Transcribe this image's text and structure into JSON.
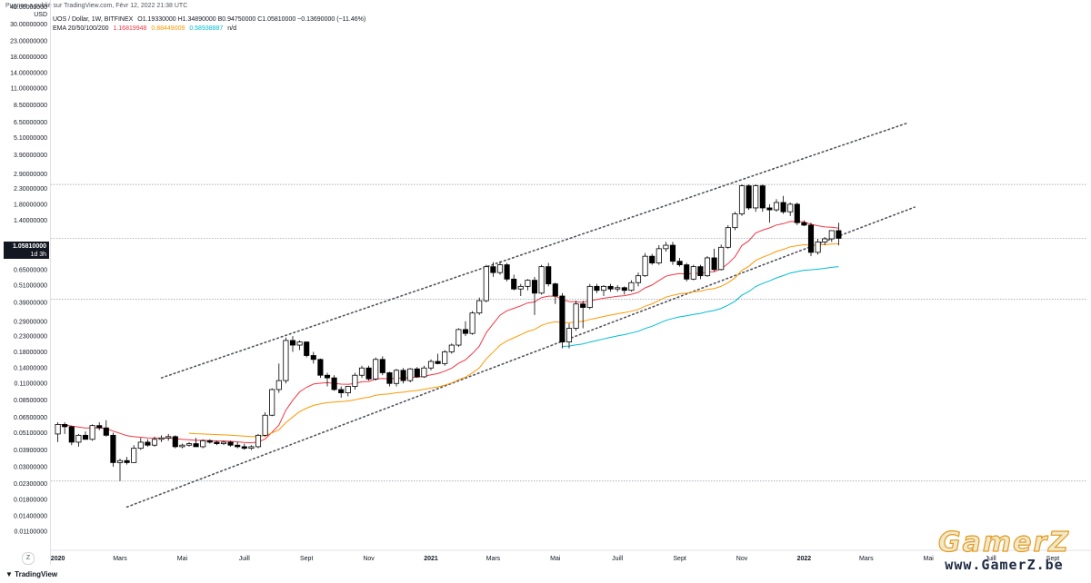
{
  "header": {
    "published_text": "Pugnae a publié sur TradingView.com, Févr 12, 2022 21:38 UTC"
  },
  "legend": {
    "symbol": "UOS / Dollar, 1W, BITFINEX",
    "ohlc": "O1.19330000  H1.34890000  B0.94750000  C1.05810000  −0.13690000 (−11.46%)",
    "ema_label": "EMA 20/50/100/200",
    "ema20": "1.16819948",
    "ema50": "0.88449009",
    "ema100": "0.58938887",
    "ema200": "n/d",
    "colors": {
      "ema20": "#f23645",
      "ema50": "#ff9800",
      "ema100": "#00bcd4"
    }
  },
  "price_axis": {
    "currency_top": "40.00000000",
    "currency": "USD",
    "last_price": "1.05810000",
    "last_price_sub": "1d 3h"
  },
  "watermark": {
    "logo_text": "GamerZ",
    "url_text": "www.GamerZ.be"
  },
  "footer": {
    "brand": "TradingView",
    "zoom_label": "Z"
  },
  "chart_data": {
    "type": "candlestick",
    "title": "",
    "ylabel": "",
    "y_scale": "log",
    "ylim": [
      0.0085,
      40
    ],
    "y_ticks": [
      {
        "label": "30.00000000",
        "v": 30
      },
      {
        "label": "23.00000000",
        "v": 23
      },
      {
        "label": "18.00000000",
        "v": 18
      },
      {
        "label": "14.00000000",
        "v": 14
      },
      {
        "label": "11.00000000",
        "v": 11
      },
      {
        "label": "8.50000000",
        "v": 8.5
      },
      {
        "label": "6.50000000",
        "v": 6.5
      },
      {
        "label": "5.10000000",
        "v": 5.1
      },
      {
        "label": "3.90000000",
        "v": 3.9
      },
      {
        "label": "2.90000000",
        "v": 2.9
      },
      {
        "label": "2.30000000",
        "v": 2.3
      },
      {
        "label": "1.80000000",
        "v": 1.8
      },
      {
        "label": "1.40000000",
        "v": 1.4
      },
      {
        "label": "0.85000000",
        "v": 0.85
      },
      {
        "label": "0.65000000",
        "v": 0.65
      },
      {
        "label": "0.51000000",
        "v": 0.51
      },
      {
        "label": "0.39000000",
        "v": 0.39
      },
      {
        "label": "0.29000000",
        "v": 0.29
      },
      {
        "label": "0.23000000",
        "v": 0.23
      },
      {
        "label": "0.18000000",
        "v": 0.18
      },
      {
        "label": "0.14000000",
        "v": 0.14
      },
      {
        "label": "0.11000000",
        "v": 0.11
      },
      {
        "label": "0.08500000",
        "v": 0.085
      },
      {
        "label": "0.06500000",
        "v": 0.065
      },
      {
        "label": "0.05100000",
        "v": 0.051
      },
      {
        "label": "0.03900000",
        "v": 0.039
      },
      {
        "label": "0.03000000",
        "v": 0.03
      },
      {
        "label": "0.02300000",
        "v": 0.023
      },
      {
        "label": "0.01800000",
        "v": 0.018
      },
      {
        "label": "0.01400000",
        "v": 0.014
      },
      {
        "label": "0.01100000",
        "v": 0.011
      }
    ],
    "x_ticks": [
      {
        "label": "2020",
        "week": 0,
        "bold": true
      },
      {
        "label": "Mars",
        "week": 9
      },
      {
        "label": "Mai",
        "week": 18
      },
      {
        "label": "Juill",
        "week": 27
      },
      {
        "label": "Sept",
        "week": 36
      },
      {
        "label": "Nov",
        "week": 45
      },
      {
        "label": "2021",
        "week": 54,
        "bold": true
      },
      {
        "label": "Mars",
        "week": 63
      },
      {
        "label": "Mai",
        "week": 72
      },
      {
        "label": "Juill",
        "week": 81
      },
      {
        "label": "Sept",
        "week": 90
      },
      {
        "label": "Nov",
        "week": 99
      },
      {
        "label": "2022",
        "week": 108,
        "bold": true
      },
      {
        "label": "Mars",
        "week": 117
      },
      {
        "label": "Mai",
        "week": 126
      },
      {
        "label": "Juill",
        "week": 135
      },
      {
        "label": "Sept",
        "week": 144
      }
    ],
    "x_range_weeks": [
      -1,
      149
    ],
    "horizontal_levels": [
      2.45,
      1.0581,
      0.41,
      0.024
    ],
    "channel_lines": [
      {
        "from": {
          "week": 15,
          "v": 0.12
        },
        "to": {
          "week": 123,
          "v": 6.4
        }
      },
      {
        "from": {
          "week": 10,
          "v": 0.016
        },
        "to": {
          "week": 124,
          "v": 1.72
        }
      }
    ],
    "candles": [
      {
        "o": 0.05,
        "h": 0.06,
        "l": 0.044,
        "c": 0.058
      },
      {
        "o": 0.058,
        "h": 0.06,
        "l": 0.05,
        "c": 0.056
      },
      {
        "o": 0.056,
        "h": 0.057,
        "l": 0.042,
        "c": 0.044
      },
      {
        "o": 0.044,
        "h": 0.05,
        "l": 0.041,
        "c": 0.049
      },
      {
        "o": 0.049,
        "h": 0.052,
        "l": 0.046,
        "c": 0.046
      },
      {
        "o": 0.046,
        "h": 0.058,
        "l": 0.045,
        "c": 0.057
      },
      {
        "o": 0.057,
        "h": 0.06,
        "l": 0.053,
        "c": 0.055
      },
      {
        "o": 0.055,
        "h": 0.062,
        "l": 0.048,
        "c": 0.049
      },
      {
        "o": 0.049,
        "h": 0.051,
        "l": 0.03,
        "c": 0.032
      },
      {
        "o": 0.032,
        "h": 0.034,
        "l": 0.024,
        "c": 0.033
      },
      {
        "o": 0.033,
        "h": 0.035,
        "l": 0.031,
        "c": 0.032
      },
      {
        "o": 0.032,
        "h": 0.042,
        "l": 0.032,
        "c": 0.04
      },
      {
        "o": 0.04,
        "h": 0.047,
        "l": 0.039,
        "c": 0.044
      },
      {
        "o": 0.044,
        "h": 0.046,
        "l": 0.041,
        "c": 0.042
      },
      {
        "o": 0.042,
        "h": 0.048,
        "l": 0.041,
        "c": 0.046
      },
      {
        "o": 0.046,
        "h": 0.049,
        "l": 0.044,
        "c": 0.047
      },
      {
        "o": 0.047,
        "h": 0.05,
        "l": 0.045,
        "c": 0.048
      },
      {
        "o": 0.048,
        "h": 0.049,
        "l": 0.04,
        "c": 0.041
      },
      {
        "o": 0.041,
        "h": 0.043,
        "l": 0.04,
        "c": 0.042
      },
      {
        "o": 0.042,
        "h": 0.044,
        "l": 0.041,
        "c": 0.043
      },
      {
        "o": 0.043,
        "h": 0.047,
        "l": 0.041,
        "c": 0.041
      },
      {
        "o": 0.041,
        "h": 0.046,
        "l": 0.04,
        "c": 0.045
      },
      {
        "o": 0.045,
        "h": 0.046,
        "l": 0.043,
        "c": 0.044
      },
      {
        "o": 0.044,
        "h": 0.045,
        "l": 0.042,
        "c": 0.043
      },
      {
        "o": 0.043,
        "h": 0.045,
        "l": 0.042,
        "c": 0.044
      },
      {
        "o": 0.044,
        "h": 0.045,
        "l": 0.041,
        "c": 0.042
      },
      {
        "o": 0.042,
        "h": 0.044,
        "l": 0.04,
        "c": 0.041
      },
      {
        "o": 0.041,
        "h": 0.043,
        "l": 0.039,
        "c": 0.04
      },
      {
        "o": 0.04,
        "h": 0.042,
        "l": 0.039,
        "c": 0.041
      },
      {
        "o": 0.041,
        "h": 0.05,
        "l": 0.04,
        "c": 0.049
      },
      {
        "o": 0.049,
        "h": 0.07,
        "l": 0.048,
        "c": 0.067
      },
      {
        "o": 0.067,
        "h": 0.102,
        "l": 0.066,
        "c": 0.1
      },
      {
        "o": 0.1,
        "h": 0.15,
        "l": 0.095,
        "c": 0.115
      },
      {
        "o": 0.115,
        "h": 0.225,
        "l": 0.11,
        "c": 0.215
      },
      {
        "o": 0.215,
        "h": 0.23,
        "l": 0.18,
        "c": 0.2
      },
      {
        "o": 0.2,
        "h": 0.215,
        "l": 0.185,
        "c": 0.21
      },
      {
        "o": 0.21,
        "h": 0.212,
        "l": 0.165,
        "c": 0.17
      },
      {
        "o": 0.17,
        "h": 0.18,
        "l": 0.15,
        "c": 0.16
      },
      {
        "o": 0.16,
        "h": 0.162,
        "l": 0.12,
        "c": 0.125
      },
      {
        "o": 0.125,
        "h": 0.13,
        "l": 0.105,
        "c": 0.12
      },
      {
        "o": 0.12,
        "h": 0.125,
        "l": 0.098,
        "c": 0.1
      },
      {
        "o": 0.1,
        "h": 0.105,
        "l": 0.088,
        "c": 0.095
      },
      {
        "o": 0.095,
        "h": 0.106,
        "l": 0.09,
        "c": 0.105
      },
      {
        "o": 0.105,
        "h": 0.13,
        "l": 0.1,
        "c": 0.125
      },
      {
        "o": 0.125,
        "h": 0.145,
        "l": 0.12,
        "c": 0.14
      },
      {
        "o": 0.14,
        "h": 0.145,
        "l": 0.115,
        "c": 0.118
      },
      {
        "o": 0.118,
        "h": 0.165,
        "l": 0.115,
        "c": 0.16
      },
      {
        "o": 0.16,
        "h": 0.168,
        "l": 0.125,
        "c": 0.13
      },
      {
        "o": 0.13,
        "h": 0.132,
        "l": 0.105,
        "c": 0.11
      },
      {
        "o": 0.11,
        "h": 0.138,
        "l": 0.105,
        "c": 0.135
      },
      {
        "o": 0.135,
        "h": 0.14,
        "l": 0.11,
        "c": 0.115
      },
      {
        "o": 0.115,
        "h": 0.14,
        "l": 0.112,
        "c": 0.138
      },
      {
        "o": 0.138,
        "h": 0.142,
        "l": 0.12,
        "c": 0.122
      },
      {
        "o": 0.122,
        "h": 0.145,
        "l": 0.12,
        "c": 0.14
      },
      {
        "o": 0.14,
        "h": 0.16,
        "l": 0.135,
        "c": 0.155
      },
      {
        "o": 0.155,
        "h": 0.175,
        "l": 0.148,
        "c": 0.15
      },
      {
        "o": 0.15,
        "h": 0.185,
        "l": 0.145,
        "c": 0.18
      },
      {
        "o": 0.18,
        "h": 0.205,
        "l": 0.175,
        "c": 0.2
      },
      {
        "o": 0.2,
        "h": 0.26,
        "l": 0.195,
        "c": 0.255
      },
      {
        "o": 0.255,
        "h": 0.29,
        "l": 0.23,
        "c": 0.24
      },
      {
        "o": 0.24,
        "h": 0.34,
        "l": 0.235,
        "c": 0.33
      },
      {
        "o": 0.33,
        "h": 0.42,
        "l": 0.32,
        "c": 0.4
      },
      {
        "o": 0.4,
        "h": 0.7,
        "l": 0.39,
        "c": 0.68
      },
      {
        "o": 0.68,
        "h": 0.73,
        "l": 0.58,
        "c": 0.62
      },
      {
        "o": 0.62,
        "h": 0.74,
        "l": 0.6,
        "c": 0.7
      },
      {
        "o": 0.7,
        "h": 0.72,
        "l": 0.54,
        "c": 0.56
      },
      {
        "o": 0.56,
        "h": 0.6,
        "l": 0.47,
        "c": 0.48
      },
      {
        "o": 0.48,
        "h": 0.52,
        "l": 0.43,
        "c": 0.5
      },
      {
        "o": 0.5,
        "h": 0.56,
        "l": 0.47,
        "c": 0.55
      },
      {
        "o": 0.55,
        "h": 0.58,
        "l": 0.32,
        "c": 0.45
      },
      {
        "o": 0.45,
        "h": 0.7,
        "l": 0.44,
        "c": 0.68
      },
      {
        "o": 0.68,
        "h": 0.72,
        "l": 0.5,
        "c": 0.52
      },
      {
        "o": 0.52,
        "h": 0.53,
        "l": 0.38,
        "c": 0.43
      },
      {
        "o": 0.43,
        "h": 0.45,
        "l": 0.19,
        "c": 0.21
      },
      {
        "o": 0.21,
        "h": 0.28,
        "l": 0.19,
        "c": 0.26
      },
      {
        "o": 0.26,
        "h": 0.4,
        "l": 0.25,
        "c": 0.38
      },
      {
        "o": 0.38,
        "h": 0.4,
        "l": 0.26,
        "c": 0.36
      },
      {
        "o": 0.36,
        "h": 0.52,
        "l": 0.35,
        "c": 0.5
      },
      {
        "o": 0.5,
        "h": 0.52,
        "l": 0.45,
        "c": 0.47
      },
      {
        "o": 0.47,
        "h": 0.51,
        "l": 0.43,
        "c": 0.5
      },
      {
        "o": 0.5,
        "h": 0.52,
        "l": 0.46,
        "c": 0.48
      },
      {
        "o": 0.48,
        "h": 0.51,
        "l": 0.46,
        "c": 0.49
      },
      {
        "o": 0.49,
        "h": 0.5,
        "l": 0.44,
        "c": 0.47
      },
      {
        "o": 0.47,
        "h": 0.55,
        "l": 0.46,
        "c": 0.53
      },
      {
        "o": 0.53,
        "h": 0.62,
        "l": 0.5,
        "c": 0.59
      },
      {
        "o": 0.59,
        "h": 0.84,
        "l": 0.58,
        "c": 0.8
      },
      {
        "o": 0.8,
        "h": 0.83,
        "l": 0.7,
        "c": 0.72
      },
      {
        "o": 0.72,
        "h": 0.95,
        "l": 0.7,
        "c": 0.9
      },
      {
        "o": 0.9,
        "h": 1.0,
        "l": 0.86,
        "c": 0.95
      },
      {
        "o": 0.95,
        "h": 1.0,
        "l": 0.7,
        "c": 0.74
      },
      {
        "o": 0.74,
        "h": 0.78,
        "l": 0.68,
        "c": 0.7
      },
      {
        "o": 0.7,
        "h": 0.72,
        "l": 0.54,
        "c": 0.56
      },
      {
        "o": 0.56,
        "h": 0.7,
        "l": 0.55,
        "c": 0.68
      },
      {
        "o": 0.68,
        "h": 0.7,
        "l": 0.56,
        "c": 0.59
      },
      {
        "o": 0.59,
        "h": 0.8,
        "l": 0.58,
        "c": 0.78
      },
      {
        "o": 0.78,
        "h": 0.9,
        "l": 0.63,
        "c": 0.65
      },
      {
        "o": 0.65,
        "h": 0.96,
        "l": 0.64,
        "c": 0.92
      },
      {
        "o": 0.92,
        "h": 1.3,
        "l": 0.9,
        "c": 1.25
      },
      {
        "o": 1.25,
        "h": 1.6,
        "l": 1.2,
        "c": 1.55
      },
      {
        "o": 1.55,
        "h": 2.45,
        "l": 1.5,
        "c": 2.4
      },
      {
        "o": 2.4,
        "h": 2.45,
        "l": 1.65,
        "c": 1.7
      },
      {
        "o": 1.7,
        "h": 2.45,
        "l": 1.6,
        "c": 2.4
      },
      {
        "o": 2.4,
        "h": 2.45,
        "l": 1.6,
        "c": 1.7
      },
      {
        "o": 1.7,
        "h": 1.8,
        "l": 1.35,
        "c": 1.65
      },
      {
        "o": 1.65,
        "h": 1.95,
        "l": 1.6,
        "c": 1.85
      },
      {
        "o": 1.85,
        "h": 2.05,
        "l": 1.55,
        "c": 1.6
      },
      {
        "o": 1.6,
        "h": 1.85,
        "l": 1.5,
        "c": 1.8
      },
      {
        "o": 1.8,
        "h": 1.85,
        "l": 1.3,
        "c": 1.35
      },
      {
        "o": 1.35,
        "h": 1.4,
        "l": 1.28,
        "c": 1.3
      },
      {
        "o": 1.3,
        "h": 1.35,
        "l": 0.8,
        "c": 0.85
      },
      {
        "o": 0.85,
        "h": 1.05,
        "l": 0.82,
        "c": 1.0
      },
      {
        "o": 1.0,
        "h": 1.08,
        "l": 0.95,
        "c": 1.05
      },
      {
        "o": 1.05,
        "h": 1.2,
        "l": 1.0,
        "c": 1.193
      },
      {
        "o": 1.193,
        "h": 1.349,
        "l": 0.9475,
        "c": 1.0581
      }
    ],
    "ema_start_week": {
      "ema20": 0,
      "ema50": 19,
      "ema100": 73
    }
  }
}
